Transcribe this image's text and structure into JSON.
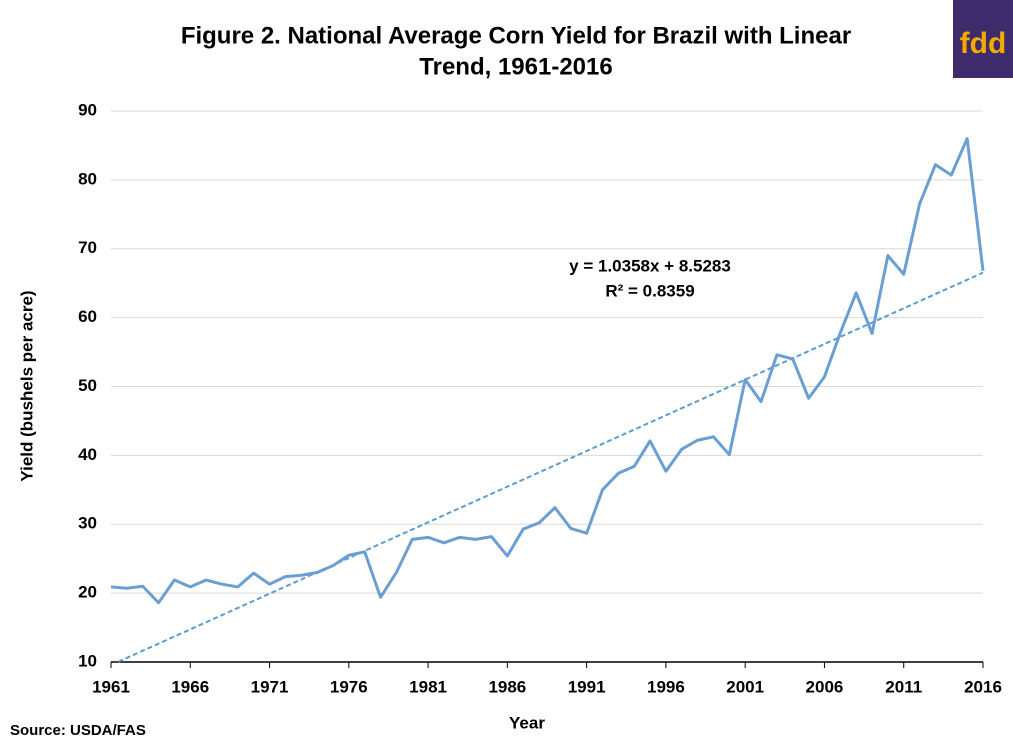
{
  "chart_data": {
    "type": "line",
    "title": [
      "Figure 2. National Average Corn Yield for Brazil with Linear",
      "Trend, 1961-2016"
    ],
    "x_label": "Year",
    "y_label": "Yield (bushels per acre)",
    "source": "Source: USDA/FAS",
    "logo": "fdd",
    "annotations": [
      "y = 1.0358x + 8.5283",
      "R² = 0.8359"
    ],
    "x": [
      1961,
      1962,
      1963,
      1964,
      1965,
      1966,
      1967,
      1968,
      1969,
      1970,
      1971,
      1972,
      1973,
      1974,
      1975,
      1976,
      1977,
      1978,
      1979,
      1980,
      1981,
      1982,
      1983,
      1984,
      1985,
      1986,
      1987,
      1988,
      1989,
      1990,
      1991,
      1992,
      1993,
      1994,
      1995,
      1996,
      1997,
      1998,
      1999,
      2000,
      2001,
      2002,
      2003,
      2004,
      2005,
      2006,
      2007,
      2008,
      2009,
      2010,
      2011,
      2012,
      2013,
      2014,
      2015,
      2016
    ],
    "series": [
      {
        "color": "#6a9fd4",
        "values": [
          20.9,
          20.7,
          21.0,
          18.6,
          21.9,
          20.9,
          21.9,
          21.3,
          20.9,
          22.9,
          21.3,
          22.4,
          22.6,
          23.0,
          24.0,
          25.5,
          26.0,
          19.4,
          23.0,
          27.8,
          28.1,
          27.3,
          28.1,
          27.8,
          28.2,
          25.4,
          29.3,
          30.2,
          32.4,
          29.4,
          28.7,
          35.0,
          37.4,
          38.4,
          42.1,
          37.7,
          40.9,
          42.2,
          42.7,
          40.1,
          51.0,
          47.8,
          54.6,
          54.0,
          48.3,
          51.4,
          57.8,
          63.6,
          57.7,
          69.0,
          66.3,
          76.5,
          82.2,
          80.7,
          86.0,
          66.8
        ]
      }
    ],
    "trend": {
      "color": "#5b9bd5",
      "x": [
        1961,
        2016
      ],
      "values": [
        9.56,
        66.53
      ]
    },
    "xlim": [
      1961,
      2016
    ],
    "xticks": [
      1961,
      1966,
      1971,
      1976,
      1981,
      1986,
      1991,
      1996,
      2001,
      2006,
      2011,
      2016
    ],
    "ylim": [
      10,
      90
    ],
    "yticks": [
      10,
      20,
      30,
      40,
      50,
      60,
      70,
      80,
      90
    ],
    "grid": true
  }
}
